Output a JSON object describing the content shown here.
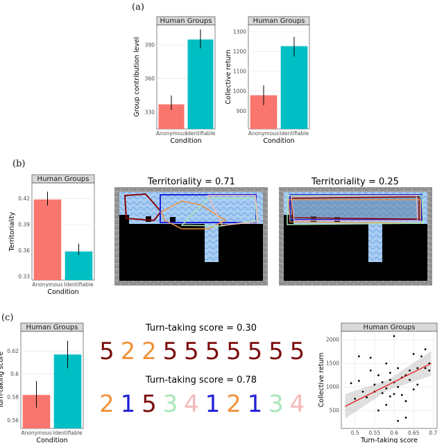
{
  "panels": {
    "a": "(a)",
    "b": "(b)",
    "c": "(c)"
  },
  "colors": {
    "anonymous": "#F8766D",
    "identifiable": "#00BFC4",
    "strip_bg": "#d9d9d9",
    "panel_bg": "#ffffff",
    "grid": "#ebebeb",
    "regression": "#e41a1c",
    "ribbon": "#bfbfbf"
  },
  "territory": {
    "low_title": "Territoriality = 0.71",
    "high_title": "Territoriality = 0.25"
  },
  "turn_taking": {
    "title_low": "Turn-taking score = 0.30",
    "title_high": "Turn-taking score = 0.78",
    "sequence_low": [
      {
        "d": "5",
        "c": "#7b0c0c"
      },
      {
        "d": "2",
        "c": "#f0923a"
      },
      {
        "d": "2",
        "c": "#f0923a"
      },
      {
        "d": "5",
        "c": "#7b0c0c"
      },
      {
        "d": "5",
        "c": "#7b0c0c"
      },
      {
        "d": "5",
        "c": "#7b0c0c"
      },
      {
        "d": "5",
        "c": "#7b0c0c"
      },
      {
        "d": "5",
        "c": "#7b0c0c"
      },
      {
        "d": "5",
        "c": "#7b0c0c"
      },
      {
        "d": "5",
        "c": "#7b0c0c"
      }
    ],
    "sequence_high": [
      {
        "d": "2",
        "c": "#f0923a"
      },
      {
        "d": "1",
        "c": "#1f1fd6"
      },
      {
        "d": "5",
        "c": "#7b0c0c"
      },
      {
        "d": "3",
        "c": "#a8e6b8"
      },
      {
        "d": "4",
        "c": "#f3b9b9"
      },
      {
        "d": "1",
        "c": "#1f1fd6"
      },
      {
        "d": "2",
        "c": "#f0923a"
      },
      {
        "d": "1",
        "c": "#1f1fd6"
      },
      {
        "d": "3",
        "c": "#a8e6b8"
      },
      {
        "d": "4",
        "c": "#f3b9b9"
      }
    ]
  },
  "chart_data": [
    {
      "id": "a1",
      "type": "bar",
      "strip": "Human Groups",
      "categories": [
        "Anonymous",
        "Identifiable"
      ],
      "values": [
        337,
        395
      ],
      "error": [
        [
          332,
          345
        ],
        [
          387,
          404
        ]
      ],
      "xlabel": "Condition",
      "ylabel": "Group contribution level",
      "ylim": [
        315,
        408
      ],
      "yticks": [
        330,
        360,
        390
      ]
    },
    {
      "id": "a2",
      "type": "bar",
      "strip": "Human Groups",
      "categories": [
        "Anonymous",
        "Identifiable"
      ],
      "values": [
        980,
        1228
      ],
      "error": [
        [
          930,
          1030
        ],
        [
          1175,
          1275
        ]
      ],
      "xlabel": "Condition",
      "ylabel": "Collective return",
      "ylim": [
        810,
        1335
      ],
      "yticks": [
        900,
        1000,
        1100,
        1200,
        1300
      ]
    },
    {
      "id": "b",
      "type": "bar",
      "strip": "Human Groups",
      "categories": [
        "Anonymous",
        "Identifiable"
      ],
      "values": [
        0.419,
        0.359
      ],
      "error": [
        [
          0.412,
          0.428
        ],
        [
          0.355,
          0.368
        ]
      ],
      "xlabel": "Condition",
      "ylabel": "Territoriality",
      "ylim": [
        0.326,
        0.438
      ],
      "yticks": [
        0.33,
        0.36,
        0.39,
        0.42
      ]
    },
    {
      "id": "c1",
      "type": "bar",
      "strip": "Human Groups",
      "categories": [
        "Anonymous",
        "Identifiable"
      ],
      "values": [
        0.582,
        0.617
      ],
      "error": [
        [
          0.571,
          0.594
        ],
        [
          0.605,
          0.629
        ]
      ],
      "xlabel": "Condition",
      "ylabel": "Turn-taking score",
      "ylim": [
        0.553,
        0.637
      ],
      "yticks": [
        0.56,
        0.58,
        0.6,
        0.62
      ]
    },
    {
      "id": "c2",
      "type": "scatter",
      "strip": "Human Groups",
      "xlabel": "Turn-taking score",
      "ylabel": "Collective return",
      "xlim": [
        0.465,
        0.71
      ],
      "ylim": [
        120,
        2180
      ],
      "xticks": [
        0.5,
        0.55,
        0.6,
        0.65,
        0.7
      ],
      "yticks": [
        500,
        1000,
        1500,
        2000
      ],
      "points": [
        [
          0.49,
          1080
        ],
        [
          0.5,
          750
        ],
        [
          0.51,
          1130
        ],
        [
          0.51,
          1650
        ],
        [
          0.52,
          900
        ],
        [
          0.53,
          780
        ],
        [
          0.54,
          1620
        ],
        [
          0.54,
          1350
        ],
        [
          0.55,
          1050
        ],
        [
          0.55,
          900
        ],
        [
          0.56,
          500
        ],
        [
          0.56,
          1250
        ],
        [
          0.57,
          1100
        ],
        [
          0.57,
          870
        ],
        [
          0.58,
          1500
        ],
        [
          0.58,
          970
        ],
        [
          0.58,
          620
        ],
        [
          0.59,
          1300
        ],
        [
          0.59,
          1150
        ],
        [
          0.59,
          800
        ],
        [
          0.6,
          1100
        ],
        [
          0.6,
          850
        ],
        [
          0.6,
          2080
        ],
        [
          0.61,
          1000
        ],
        [
          0.61,
          280
        ],
        [
          0.61,
          1400
        ],
        [
          0.62,
          1200
        ],
        [
          0.62,
          830
        ],
        [
          0.63,
          1250
        ],
        [
          0.63,
          350
        ],
        [
          0.63,
          700
        ],
        [
          0.64,
          1350
        ],
        [
          0.64,
          1150
        ],
        [
          0.65,
          1700
        ],
        [
          0.65,
          950
        ],
        [
          0.66,
          1400
        ],
        [
          0.66,
          1050
        ],
        [
          0.67,
          1650
        ],
        [
          0.68,
          1800
        ],
        [
          0.68,
          1400
        ],
        [
          0.69,
          1500
        ],
        [
          0.69,
          1350
        ]
      ],
      "fit": {
        "x": [
          0.475,
          0.695
        ],
        "y": [
          590,
          1500
        ]
      }
    }
  ]
}
